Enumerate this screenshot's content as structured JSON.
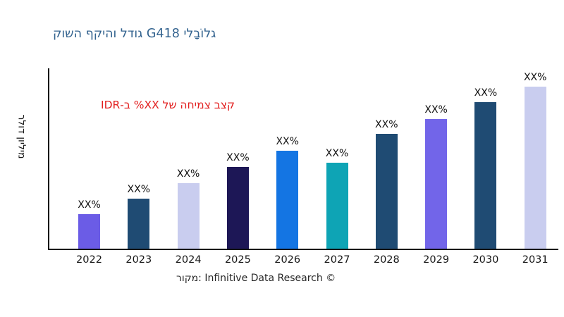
{
  "title": {
    "text": "גלוֹבָלי G418 גודל והיקף השוק",
    "color": "#33638F"
  },
  "annotation": {
    "text": "קצב צמיחה של XX% ב-IDR",
    "color": "#E21E1E"
  },
  "source": {
    "text": "מקור: Infinitive Data Research ©"
  },
  "chart_data": {
    "type": "bar",
    "title": "גלוֹבָלי G418 גודל והיקף השוק",
    "xlabel": "",
    "ylabel": "מיליון דולר",
    "categories": [
      "2022",
      "2023",
      "2024",
      "2025",
      "2026",
      "2027",
      "2028",
      "2029",
      "2030",
      "2031"
    ],
    "values": [
      21.3,
      30.9,
      40.4,
      50.4,
      60.4,
      53.0,
      70.9,
      80.0,
      90.4,
      100
    ],
    "values_note": "relative units estimated from bar heights; axis has no numeric ticks",
    "bar_labels": [
      "XX%",
      "XX%",
      "XX%",
      "XX%",
      "XX%",
      "XX%",
      "XX%",
      "XX%",
      "XX%",
      "XX%"
    ],
    "bar_colors": [
      "#6B5CE6",
      "#1F4B73",
      "#C9CDEF",
      "#1D1756",
      "#1475E3",
      "#0EA4B5",
      "#1F4B73",
      "#7265E9",
      "#1F4B73",
      "#C9CDEF"
    ],
    "annotation": "קצב צמיחה של XX% ב-IDR",
    "source": "מקור: Infinitive Data Research ©",
    "ylim": [
      0,
      111
    ],
    "grid": false,
    "legend": "none",
    "axis_color": "#141414"
  }
}
